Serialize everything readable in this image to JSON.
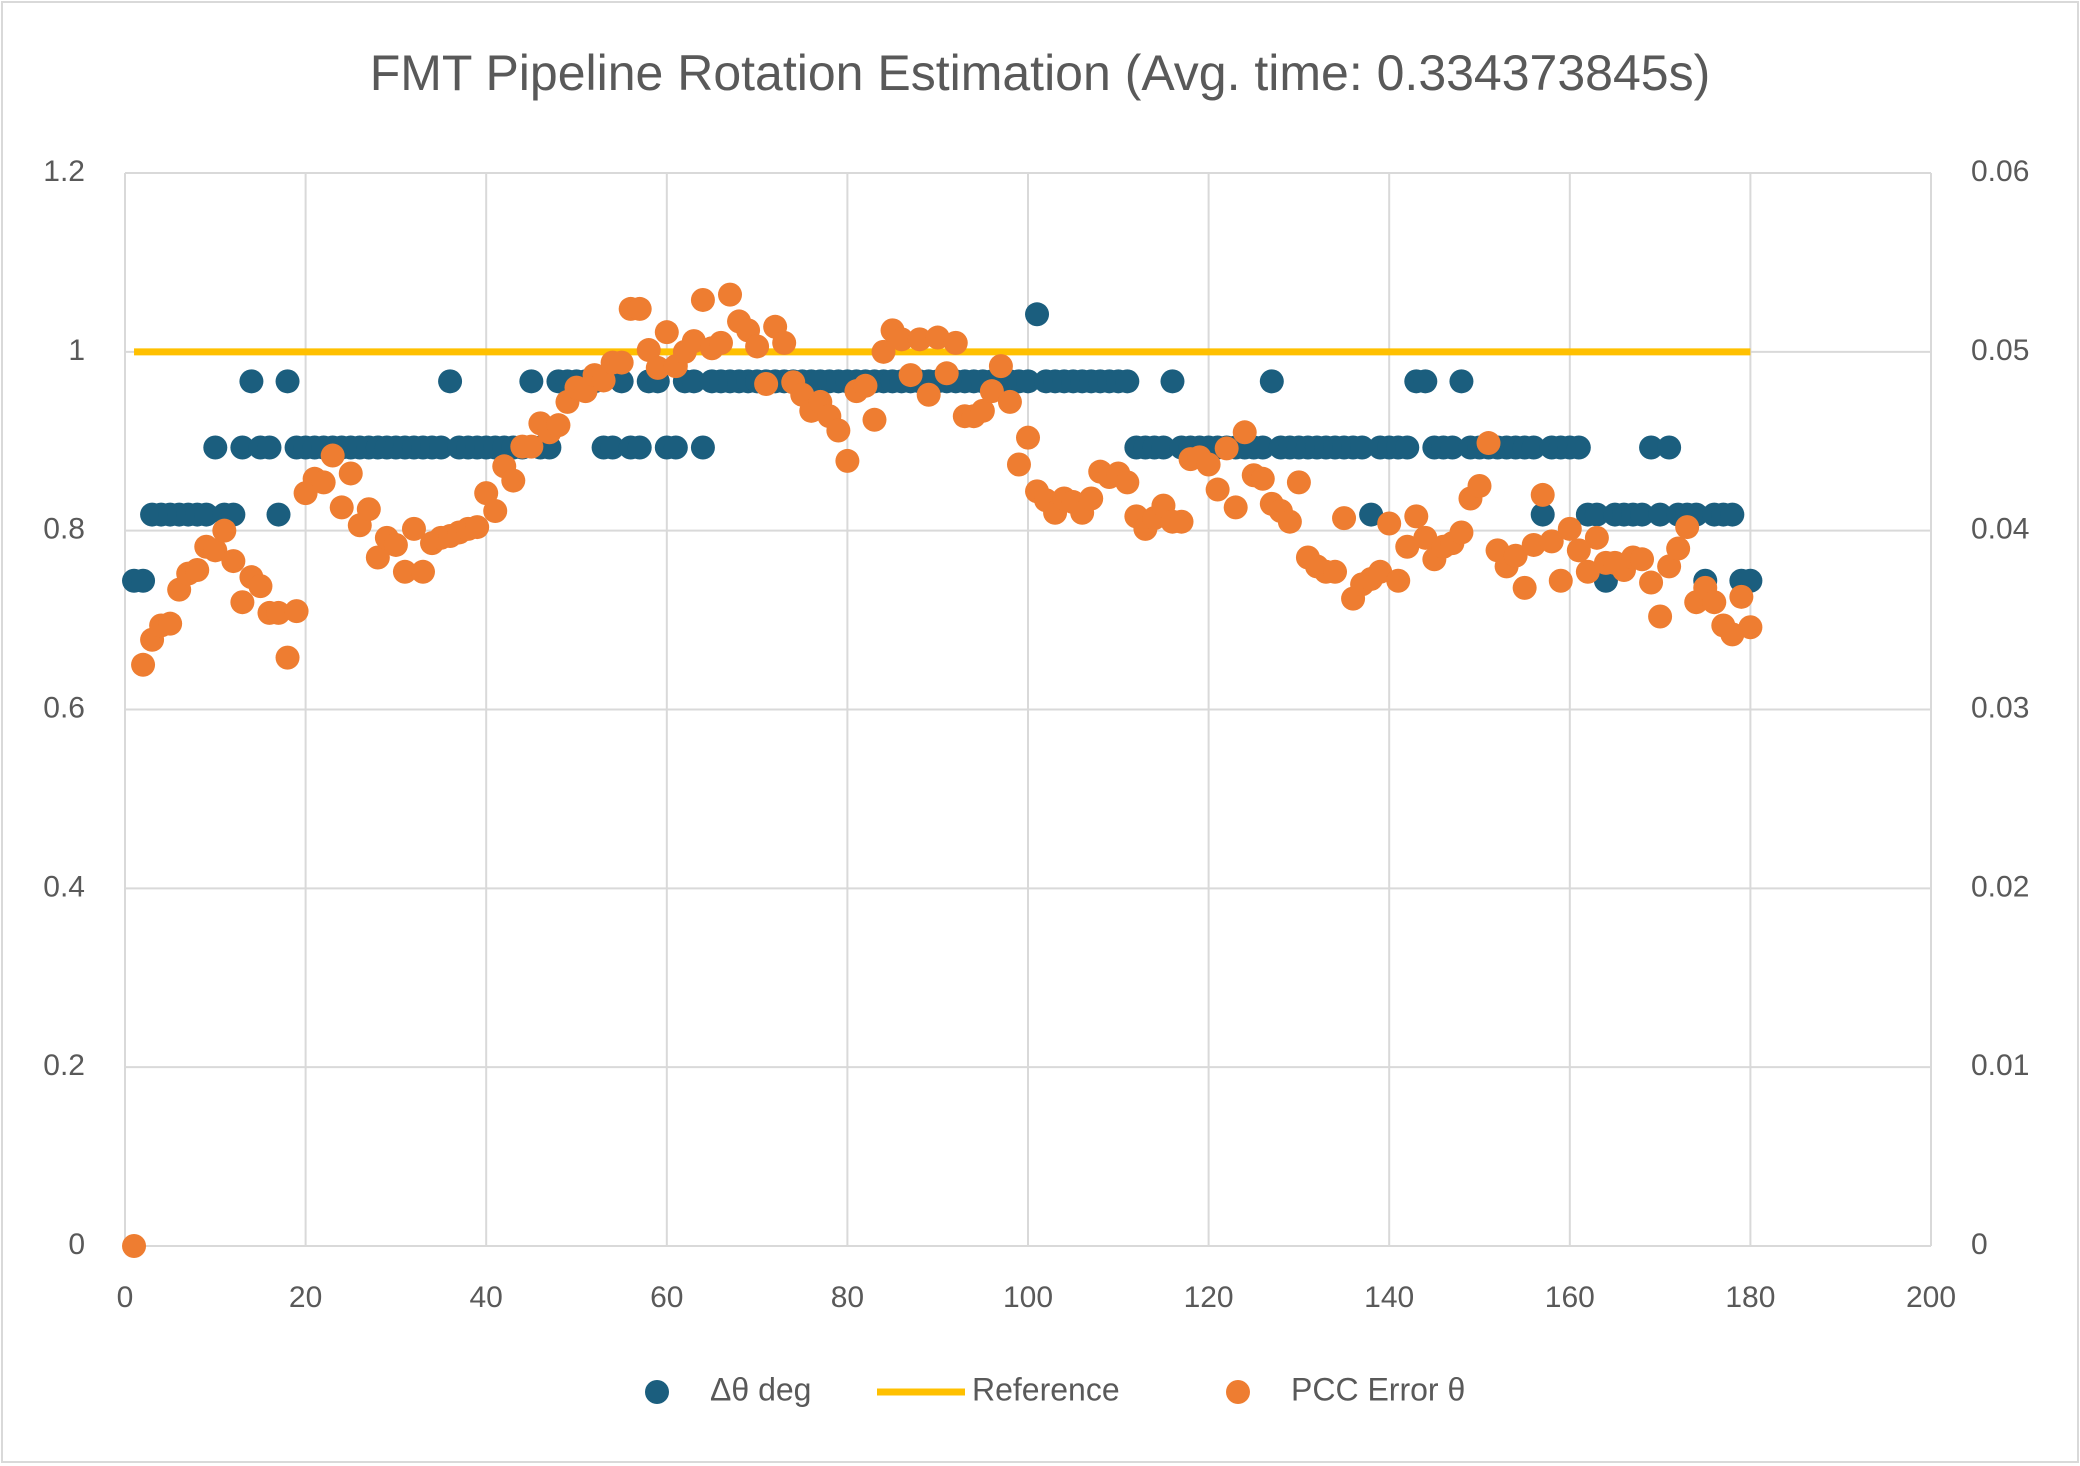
{
  "chart_data": {
    "type": "scatter",
    "title": "FMT Pipeline Rotation Estimation (Avg. time: 0.334373845s)",
    "xlim": [
      0,
      200
    ],
    "xticks": [
      0,
      20,
      40,
      60,
      80,
      100,
      120,
      140,
      160,
      180,
      200
    ],
    "ylim": [
      0,
      1.2
    ],
    "yticks": [
      0,
      0.2,
      0.4,
      0.6,
      0.8,
      1,
      1.2
    ],
    "y2lim": [
      0,
      0.06
    ],
    "y2ticks": [
      0,
      0.01,
      0.02,
      0.03,
      0.04,
      0.05,
      0.06
    ],
    "grid": true,
    "legend": "bottom",
    "x": [
      1,
      2,
      3,
      4,
      5,
      6,
      7,
      8,
      9,
      10,
      11,
      12,
      13,
      14,
      15,
      16,
      17,
      18,
      19,
      20,
      21,
      22,
      23,
      24,
      25,
      26,
      27,
      28,
      29,
      30,
      31,
      32,
      33,
      34,
      35,
      36,
      37,
      38,
      39,
      40,
      41,
      42,
      43,
      44,
      45,
      46,
      47,
      48,
      49,
      50,
      51,
      52,
      53,
      54,
      55,
      56,
      57,
      58,
      59,
      60,
      61,
      62,
      63,
      64,
      65,
      66,
      67,
      68,
      69,
      70,
      71,
      72,
      73,
      74,
      75,
      76,
      77,
      78,
      79,
      80,
      81,
      82,
      83,
      84,
      85,
      86,
      87,
      88,
      89,
      90,
      91,
      92,
      93,
      94,
      95,
      96,
      97,
      98,
      99,
      100,
      101,
      102,
      103,
      104,
      105,
      106,
      107,
      108,
      109,
      110,
      111,
      112,
      113,
      114,
      115,
      116,
      117,
      118,
      119,
      120,
      121,
      122,
      123,
      124,
      125,
      126,
      127,
      128,
      129,
      130,
      131,
      132,
      133,
      134,
      135,
      136,
      137,
      138,
      139,
      140,
      141,
      142,
      143,
      144,
      145,
      146,
      147,
      148,
      149,
      150,
      151,
      152,
      153,
      154,
      155,
      156,
      157,
      158,
      159,
      160,
      161,
      162,
      163,
      164,
      165,
      166,
      167,
      168,
      169,
      170,
      171,
      172,
      173,
      174,
      175,
      176,
      177,
      178,
      179,
      180
    ],
    "series": [
      {
        "name": "Δθ deg",
        "type": "scatter",
        "color": "#1b5e7e",
        "values": [
          0.744,
          0.744,
          0.818,
          0.818,
          0.818,
          0.818,
          0.818,
          0.818,
          0.818,
          0.893,
          0.818,
          0.818,
          0.893,
          0.967,
          0.893,
          0.893,
          0.818,
          0.967,
          0.893,
          0.893,
          0.893,
          0.893,
          0.893,
          0.893,
          0.893,
          0.893,
          0.893,
          0.893,
          0.893,
          0.893,
          0.893,
          0.893,
          0.893,
          0.893,
          0.893,
          0.967,
          0.893,
          0.893,
          0.893,
          0.893,
          0.893,
          0.893,
          0.893,
          0.893,
          0.967,
          0.893,
          0.893,
          0.967,
          0.967,
          0.967,
          0.967,
          0.967,
          0.893,
          0.893,
          0.967,
          0.893,
          0.893,
          0.967,
          0.967,
          0.893,
          0.893,
          0.967,
          0.967,
          0.893,
          0.967,
          0.967,
          0.967,
          0.967,
          0.967,
          0.967,
          0.967,
          0.967,
          0.967,
          0.967,
          0.967,
          0.967,
          0.967,
          0.967,
          0.967,
          0.967,
          0.967,
          0.967,
          0.967,
          0.967,
          0.967,
          0.967,
          0.967,
          0.967,
          0.967,
          0.967,
          0.967,
          0.967,
          0.967,
          0.967,
          0.967,
          0.967,
          0.967,
          0.967,
          0.967,
          0.967,
          1.042,
          0.967,
          0.967,
          0.967,
          0.967,
          0.967,
          0.967,
          0.967,
          0.967,
          0.967,
          0.967,
          0.893,
          0.893,
          0.893,
          0.893,
          0.967,
          0.893,
          0.893,
          0.893,
          0.893,
          0.893,
          0.893,
          0.893,
          0.893,
          0.893,
          0.893,
          0.967,
          0.893,
          0.893,
          0.893,
          0.893,
          0.893,
          0.893,
          0.893,
          0.893,
          0.893,
          0.893,
          0.818,
          0.893,
          0.893,
          0.893,
          0.893,
          0.967,
          0.967,
          0.893,
          0.893,
          0.893,
          0.967,
          0.893,
          0.893,
          0.893,
          0.893,
          0.893,
          0.893,
          0.893,
          0.893,
          0.818,
          0.893,
          0.893,
          0.893,
          0.893,
          0.818,
          0.818,
          0.744,
          0.818,
          0.818,
          0.818,
          0.818,
          0.893,
          0.818,
          0.893,
          0.818,
          0.818,
          0.818,
          0.744,
          0.818,
          0.818,
          0.818,
          0.744,
          0.744
        ]
      },
      {
        "name": "Reference",
        "type": "line",
        "color": "#ffc000",
        "x": [
          1,
          180
        ],
        "values": [
          1,
          1
        ]
      },
      {
        "name": "PCC Error θ",
        "type": "scatter",
        "color": "#ee7d31",
        "axis": "y2",
        "values": [
          0,
          0.0325,
          0.0339,
          0.0347,
          0.0348,
          0.0367,
          0.0376,
          0.0378,
          0.0391,
          0.0389,
          0.04,
          0.0383,
          0.036,
          0.0374,
          0.0369,
          0.0354,
          0.0354,
          0.0329,
          0.0355,
          0.0421,
          0.0429,
          0.0427,
          0.0442,
          0.0413,
          0.0432,
          0.0403,
          0.0412,
          0.0385,
          0.0396,
          0.0392,
          0.0377,
          0.0401,
          0.0377,
          0.0393,
          0.0396,
          0.0397,
          0.0399,
          0.0401,
          0.0402,
          0.0421,
          0.0411,
          0.0436,
          0.0428,
          0.0447,
          0.0447,
          0.046,
          0.0455,
          0.0459,
          0.0472,
          0.048,
          0.0478,
          0.0487,
          0.0484,
          0.0494,
          0.0494,
          0.0524,
          0.0524,
          0.0501,
          0.0491,
          0.0511,
          0.0492,
          0.05,
          0.0506,
          0.0529,
          0.0502,
          0.0505,
          0.0532,
          0.0517,
          0.0512,
          0.0503,
          0.0482,
          0.0514,
          0.0505,
          0.0483,
          0.0476,
          0.0467,
          0.0472,
          0.0464,
          0.0456,
          0.0439,
          0.0478,
          0.0481,
          0.0462,
          0.05,
          0.0512,
          0.0507,
          0.0487,
          0.0507,
          0.0476,
          0.0508,
          0.0488,
          0.0505,
          0.0464,
          0.0464,
          0.0467,
          0.0478,
          0.0492,
          0.0472,
          0.0437,
          0.0452,
          0.0422,
          0.0417,
          0.041,
          0.0418,
          0.0416,
          0.041,
          0.0418,
          0.0433,
          0.043,
          0.0432,
          0.0427,
          0.0408,
          0.0401,
          0.0407,
          0.0414,
          0.0405,
          0.0405,
          0.044,
          0.0441,
          0.0437,
          0.0423,
          0.0446,
          0.0413,
          0.0455,
          0.0431,
          0.0429,
          0.0415,
          0.0411,
          0.0405,
          0.0427,
          0.0385,
          0.038,
          0.0377,
          0.0377,
          0.0407,
          0.0362,
          0.037,
          0.0373,
          0.0377,
          0.0404,
          0.0372,
          0.0391,
          0.0408,
          0.0396,
          0.0384,
          0.0391,
          0.0393,
          0.0399,
          0.0418,
          0.0425,
          0.0449,
          0.0389,
          0.038,
          0.0386,
          0.0368,
          0.0392,
          0.042,
          0.0394,
          0.0372,
          0.0401,
          0.0389,
          0.0377,
          0.0396,
          0.0382,
          0.0382,
          0.0378,
          0.0385,
          0.0384,
          0.0371,
          0.0352,
          0.038,
          0.039,
          0.0402,
          0.036,
          0.0368,
          0.036,
          0.0347,
          0.0342,
          0.0363,
          0.0346
        ]
      }
    ]
  }
}
